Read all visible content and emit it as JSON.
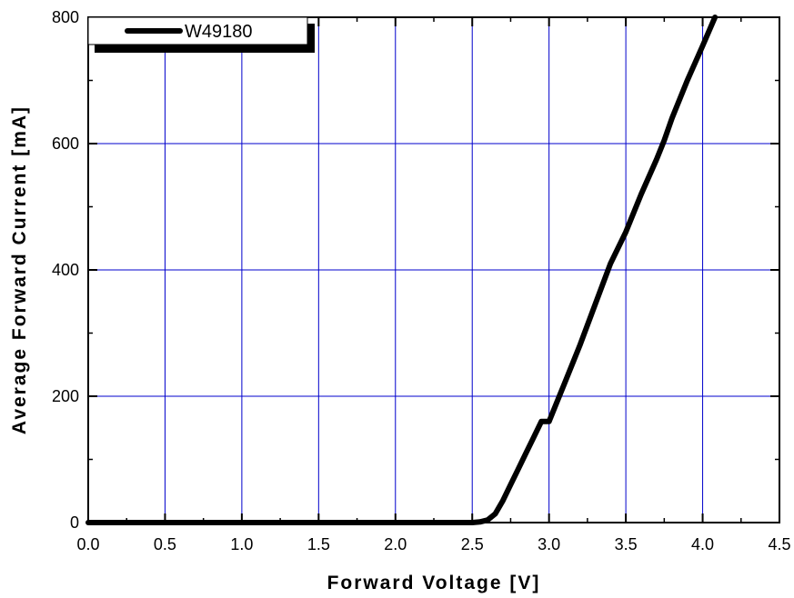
{
  "chart_data": {
    "type": "line",
    "title": "",
    "xlabel": "Forward Voltage [V]",
    "ylabel": "Average Forward Current [mA]",
    "xlim": [
      0.0,
      4.5
    ],
    "ylim": [
      0,
      800
    ],
    "xticks": [
      "0.0",
      "0.5",
      "1.0",
      "1.5",
      "2.0",
      "2.5",
      "3.0",
      "3.5",
      "4.0",
      "4.5"
    ],
    "yticks": [
      "0",
      "200",
      "400",
      "600",
      "800"
    ],
    "grid": true,
    "grid_color": "#0000cc",
    "legend_position": "top-left",
    "series": [
      {
        "name": "W49180",
        "color": "#000000",
        "points": [
          [
            0.0,
            0
          ],
          [
            0.5,
            0
          ],
          [
            1.0,
            0
          ],
          [
            1.5,
            0
          ],
          [
            2.0,
            0
          ],
          [
            2.5,
            0
          ],
          [
            2.55,
            1
          ],
          [
            2.6,
            4
          ],
          [
            2.65,
            14
          ],
          [
            2.7,
            35
          ],
          [
            2.75,
            60
          ],
          [
            2.8,
            85
          ],
          [
            2.85,
            110
          ],
          [
            2.9,
            135
          ],
          [
            2.95,
            160
          ],
          [
            3.0,
            160
          ],
          [
            3.05,
            190
          ],
          [
            3.1,
            220
          ],
          [
            3.2,
            280
          ],
          [
            3.3,
            345
          ],
          [
            3.4,
            410
          ],
          [
            3.5,
            460
          ],
          [
            3.6,
            520
          ],
          [
            3.7,
            575
          ],
          [
            3.75,
            605
          ],
          [
            3.8,
            640
          ],
          [
            3.9,
            700
          ],
          [
            4.0,
            755
          ],
          [
            4.08,
            800
          ]
        ]
      }
    ]
  }
}
